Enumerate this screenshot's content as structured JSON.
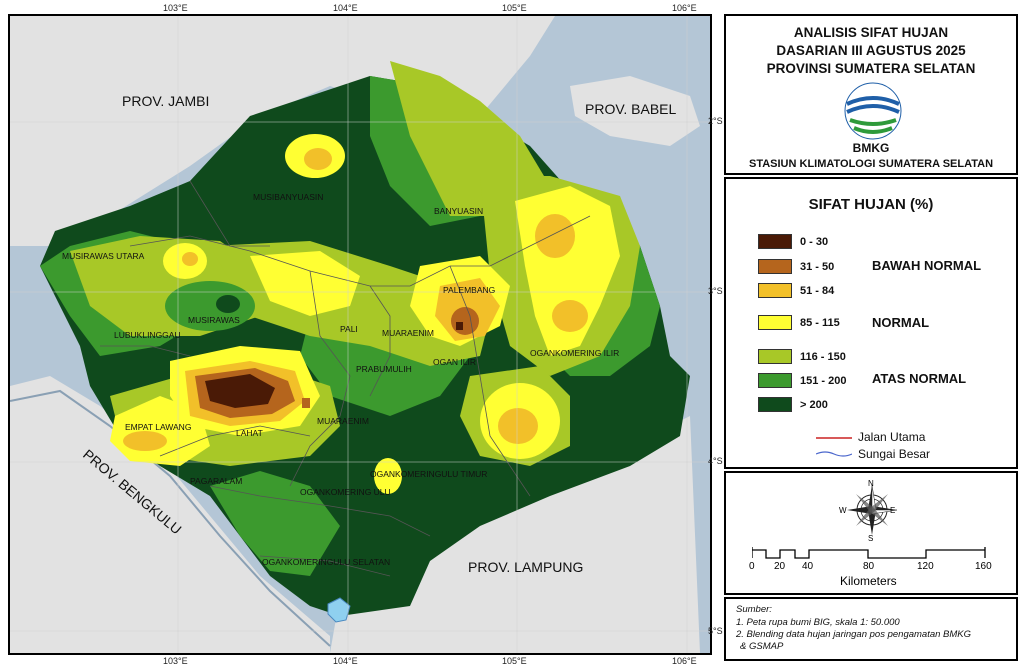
{
  "title": {
    "line1": "ANALISIS SIFAT HUJAN",
    "line2": "DASARIAN III AGUSTUS 2025",
    "line3": "PROVINSI SUMATERA SELATAN",
    "logo_text": "BMKG",
    "station": "STASIUN KLIMATOLOGI SUMATERA SELATAN"
  },
  "legend": {
    "heading": "SIFAT HUJAN (%)",
    "classes": [
      {
        "range": "0 - 30",
        "color": "#4a1a06"
      },
      {
        "range": "31 - 50",
        "color": "#b5651d"
      },
      {
        "range": "51 - 84",
        "color": "#f2c029"
      },
      {
        "range": "85 - 115",
        "color": "#ffff33"
      },
      {
        "range": "116 - 150",
        "color": "#a8c827"
      },
      {
        "range": "151 - 200",
        "color": "#3c9a2e"
      },
      {
        "range": "> 200",
        "color": "#0f4a1c"
      }
    ],
    "categories": {
      "below": "BAWAH NORMAL",
      "normal": "NORMAL",
      "above": "ATAS NORMAL"
    },
    "road": "Jalan Utama",
    "river": "Sungai Besar",
    "road_color": "#cc2222",
    "river_color": "#4a66cc"
  },
  "scale": {
    "ticks": [
      "0",
      "20",
      "40",
      "80",
      "120",
      "160"
    ],
    "unit": "Kilometers",
    "compass": {
      "n": "N",
      "s": "S",
      "e": "E",
      "w": "W"
    }
  },
  "source": {
    "heading": "Sumber:",
    "line1": "1. Peta rupa bumi BIG, skala 1: 50.000",
    "line2": "2. Blending data hujan jaringan pos pengamatan BMKG",
    "line3": "& GSMAP"
  },
  "map": {
    "lon_ticks": [
      "103°E",
      "104°E",
      "105°E",
      "106°E"
    ],
    "lat_ticks": [
      "2°S",
      "3°S",
      "4°S",
      "5°S"
    ],
    "provinces": {
      "jambi": "PROV. JAMBI",
      "babel": "PROV. BABEL",
      "bengkulu": "PROV. BENGKULU",
      "lampung": "PROV. LAMPUNG"
    },
    "regencies": {
      "musi_banyuasin": "MUSIBANYUASIN",
      "banyuasin": "BANYUASIN",
      "musirawas_utara": "MUSIRAWAS UTARA",
      "palembang": "PALEMBANG",
      "musirawas": "MUSIRAWAS",
      "lubuklinggau": "LUBUKLINGGAU",
      "pali": "PALI",
      "muaraenim_small": "MUARAENIM",
      "ogan_ilir": "OGAN ILIR",
      "prabumulih": "PRABUMULIH",
      "ogan_komering_ilir": "OGANKOMERING ILIR",
      "empat_lawang": "EMPAT LAWANG",
      "lahat": "LAHAT",
      "muaraenim": "MUARAENIM",
      "oku_timur": "OGANKOMERINGULU TIMUR",
      "pagaralam": "PAGARALAM",
      "oku": "OGANKOMERING ULU",
      "oku_selatan": "OGANKOMERINGULU SELATAN"
    }
  }
}
